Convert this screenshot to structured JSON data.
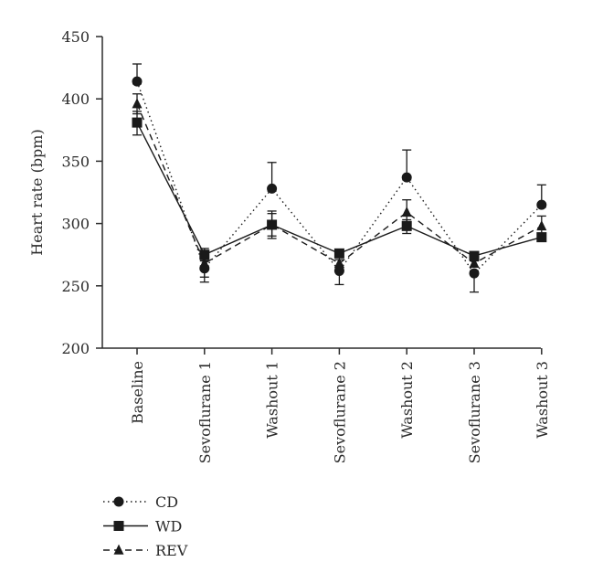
{
  "chart_data": {
    "type": "line",
    "title": "",
    "xlabel": "",
    "ylabel": "Heart rate (bpm)",
    "ylim": [
      200,
      450
    ],
    "yticks": [
      200,
      250,
      300,
      350,
      400,
      450
    ],
    "categories": [
      "Baseline",
      "Sevoflurane 1",
      "Washout 1",
      "Sevoflurane 2",
      "Washout 2",
      "Sevoflurane 3",
      "Washout 3"
    ],
    "grid": false,
    "legend_position": "bottom-left",
    "series": [
      {
        "name": "CD",
        "marker": "circle",
        "line_style": "dotted",
        "values": [
          414,
          264,
          328,
          262,
          337,
          260,
          315
        ],
        "error_upper": [
          428,
          266,
          349,
          264,
          359,
          262,
          331
        ],
        "error_lower": [
          412,
          253,
          326,
          251,
          335,
          245,
          313
        ]
      },
      {
        "name": "WD",
        "marker": "square",
        "line_style": "solid",
        "values": [
          381,
          275,
          299,
          276,
          298,
          274,
          289
        ],
        "error_upper": [
          390,
          280,
          308,
          279,
          303,
          277,
          291
        ],
        "error_lower": [
          371,
          270,
          290,
          273,
          292,
          270,
          286
        ]
      },
      {
        "name": "REV",
        "marker": "triangle",
        "line_style": "dashed",
        "values": [
          396,
          268,
          299,
          268,
          309,
          268,
          298
        ],
        "error_upper": [
          404,
          271,
          310,
          271,
          319,
          271,
          306
        ],
        "error_lower": [
          388,
          257,
          288,
          265,
          299,
          265,
          290
        ]
      }
    ]
  }
}
